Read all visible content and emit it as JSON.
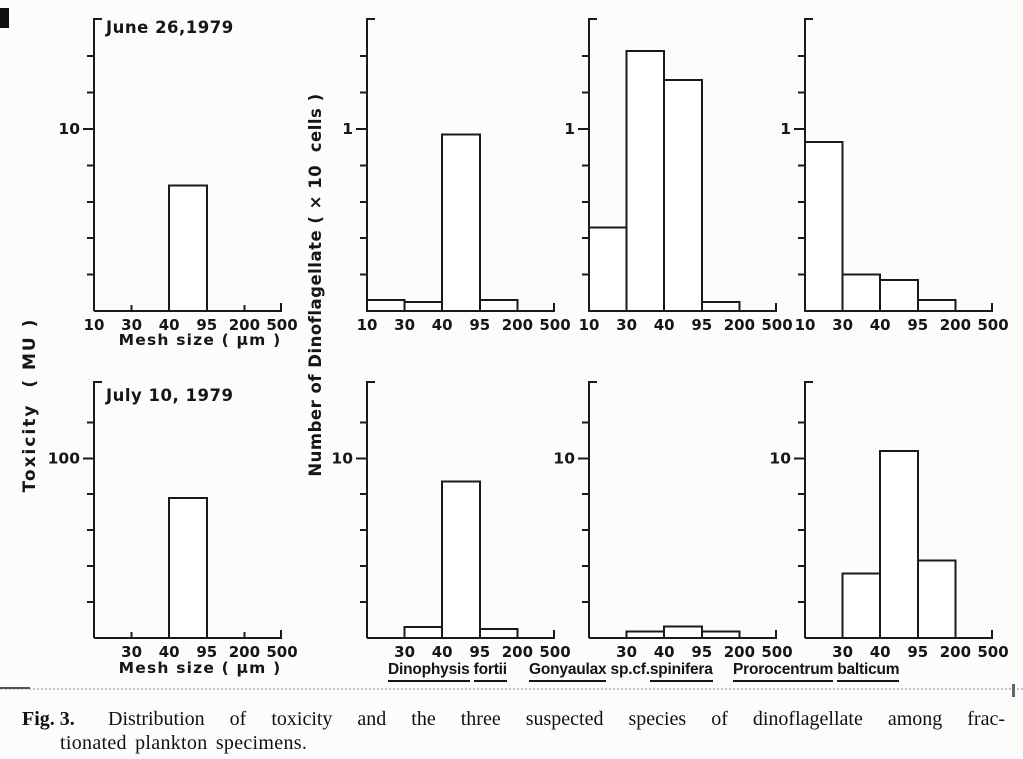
{
  "labels": {
    "dates": [
      "June 26,1979",
      "July 10, 1979"
    ],
    "y_axis_left": "Toxicity  ( MU )",
    "y_axis_center": "Number of Dinoflagellate ( × 10  cells )",
    "mesh_size": "Mesh size ( μm )",
    "species": [
      {
        "name": "Dinophysis fortii",
        "segments": [
          {
            "text": "Dinophysis",
            "underline": true
          },
          {
            "text": " ",
            "underline": false
          },
          {
            "text": "fortii",
            "underline": true
          }
        ]
      },
      {
        "name": "Gonyaulax sp.cf.spinifera",
        "segments": [
          {
            "text": "Gonyaulax",
            "underline": true
          },
          {
            "text": " sp.cf.",
            "underline": false
          },
          {
            "text": "spinifera",
            "underline": true
          }
        ]
      },
      {
        "name": "Prorocentrum balticum",
        "segments": [
          {
            "text": "Prorocentrum",
            "underline": true
          },
          {
            "text": " ",
            "underline": false
          },
          {
            "text": "balticum",
            "underline": true
          }
        ]
      }
    ]
  },
  "caption": {
    "fig_label": "Fig. 3.",
    "line1": "Distribution of toxicity and the three suspected species of dinoflagellate among frac-",
    "line2": "tionated plankton specimens."
  },
  "chart_data": [
    {
      "id": "toxicity-jun26",
      "type": "bar",
      "row": 0,
      "col": 0,
      "date": "June 26,1979",
      "measure": "Toxicity (MU)",
      "categories": [
        "10-30",
        "30-40",
        "40-95",
        "95-200",
        "200-500"
      ],
      "values": [
        0,
        0,
        6.9,
        0,
        0
      ],
      "ylim": [
        0,
        16.1
      ],
      "y_ticks": [
        2,
        4,
        6,
        8,
        10,
        12,
        14
      ],
      "y_major_value": 10,
      "y_major_label": "10",
      "x_tick_labels": [
        "10",
        "30",
        "40",
        "95",
        "200",
        "500"
      ],
      "xlabel": "Mesh size ( μm )",
      "grid": false
    },
    {
      "id": "dinophysis-jun26",
      "type": "bar",
      "row": 0,
      "col": 1,
      "date": "June 26,1979",
      "measure": "Number of Dinoflagellate (×10 cells)",
      "species": "Dinophysis fortii",
      "categories": [
        "10-30",
        "30-40",
        "40-95",
        "95-200",
        "200-500"
      ],
      "values": [
        0.06,
        0.05,
        0.97,
        0.06,
        0
      ],
      "ylim": [
        0,
        1.61
      ],
      "y_ticks": [
        0.2,
        0.4,
        0.6,
        0.8,
        1,
        1.2,
        1.4
      ],
      "y_major_value": 1,
      "y_major_label": "1",
      "x_tick_labels": [
        "10",
        "30",
        "40",
        "95",
        "200",
        "500"
      ],
      "grid": false
    },
    {
      "id": "gonyaulax-jun26",
      "type": "bar",
      "row": 0,
      "col": 2,
      "date": "June 26,1979",
      "measure": "Number of Dinoflagellate (×10 cells)",
      "species": "Gonyaulax sp.cf.spinifera",
      "categories": [
        "10-30",
        "30-40",
        "40-95",
        "95-200",
        "200-500"
      ],
      "values": [
        0.46,
        1.43,
        1.27,
        0.05,
        0
      ],
      "ylim": [
        0,
        1.61
      ],
      "y_ticks": [
        0.2,
        0.4,
        0.6,
        0.8,
        1,
        1.2,
        1.4
      ],
      "y_major_value": 1,
      "y_major_label": "1",
      "x_tick_labels": [
        "10",
        "30",
        "40",
        "95",
        "200",
        "500"
      ],
      "grid": false
    },
    {
      "id": "prorocentrum-jun26",
      "type": "bar",
      "row": 0,
      "col": 3,
      "date": "June 26,1979",
      "measure": "Number of Dinoflagellate (×10 cells)",
      "species": "Prorocentrum balticum",
      "categories": [
        "10-30",
        "30-40",
        "40-95",
        "95-200",
        "200-500"
      ],
      "values": [
        0.93,
        0.2,
        0.17,
        0.06,
        0
      ],
      "ylim": [
        0,
        1.61
      ],
      "y_ticks": [
        0.2,
        0.4,
        0.6,
        0.8,
        1,
        1.2,
        1.4
      ],
      "y_major_value": 1,
      "y_major_label": "1",
      "x_tick_labels": [
        "10",
        "30",
        "40",
        "95",
        "200",
        "500"
      ],
      "grid": false
    },
    {
      "id": "toxicity-jul10",
      "type": "bar",
      "row": 1,
      "col": 0,
      "date": "July 10, 1979",
      "measure": "Toxicity (MU)",
      "categories": [
        "10-30",
        "30-40",
        "40-95",
        "95-200",
        "200-500"
      ],
      "values": [
        0,
        0,
        78,
        0,
        0
      ],
      "ylim": [
        0,
        143
      ],
      "y_ticks": [
        20,
        40,
        60,
        80,
        100,
        120
      ],
      "y_major_value": 100,
      "y_major_label": "100",
      "x_tick_labels": [
        "",
        "30",
        "40",
        "95",
        "200",
        "500"
      ],
      "xlabel": "Mesh size ( μm )",
      "grid": false
    },
    {
      "id": "dinophysis-jul10",
      "type": "bar",
      "row": 1,
      "col": 1,
      "date": "July 10, 1979",
      "measure": "Number of Dinoflagellate (×10 cells)",
      "species": "Dinophysis fortii",
      "categories": [
        "10-30",
        "30-40",
        "40-95",
        "95-200",
        "200-500"
      ],
      "values": [
        0,
        0.6,
        8.7,
        0.5,
        0
      ],
      "ylim": [
        0,
        14.3
      ],
      "y_ticks": [
        2,
        4,
        6,
        8,
        10,
        12
      ],
      "y_major_value": 10,
      "y_major_label": "10",
      "x_tick_labels": [
        "",
        "30",
        "40",
        "95",
        "200",
        "500"
      ],
      "grid": false
    },
    {
      "id": "gonyaulax-jul10",
      "type": "bar",
      "row": 1,
      "col": 2,
      "date": "July 10, 1979",
      "measure": "Number of Dinoflagellate (×10 cells)",
      "species": "Gonyaulax sp.cf.spinifera",
      "categories": [
        "10-30",
        "30-40",
        "40-95",
        "95-200",
        "200-500"
      ],
      "values": [
        0,
        0.35,
        0.65,
        0.35,
        0
      ],
      "ylim": [
        0,
        14.3
      ],
      "y_ticks": [
        2,
        4,
        6,
        8,
        10,
        12
      ],
      "y_major_value": 10,
      "y_major_label": "10",
      "x_tick_labels": [
        "",
        "30",
        "40",
        "95",
        "200",
        "500"
      ],
      "grid": false
    },
    {
      "id": "prorocentrum-jul10",
      "type": "bar",
      "row": 1,
      "col": 3,
      "date": "July 10, 1979",
      "measure": "Number of Dinoflagellate (×10 cells)",
      "species": "Prorocentrum balticum",
      "categories": [
        "10-30",
        "30-40",
        "40-95",
        "95-200",
        "200-500"
      ],
      "values": [
        0,
        3.6,
        10.4,
        4.3,
        0
      ],
      "ylim": [
        0,
        14.3
      ],
      "y_ticks": [
        2,
        4,
        6,
        8,
        10,
        12
      ],
      "y_major_value": 10,
      "y_major_label": "10",
      "x_tick_labels": [
        "",
        "30",
        "40",
        "95",
        "200",
        "500"
      ],
      "grid": false
    }
  ],
  "style": {
    "ink_color": "#1a1a1a",
    "bar_fill": "#ffffff",
    "background": "#fcfcfa"
  }
}
